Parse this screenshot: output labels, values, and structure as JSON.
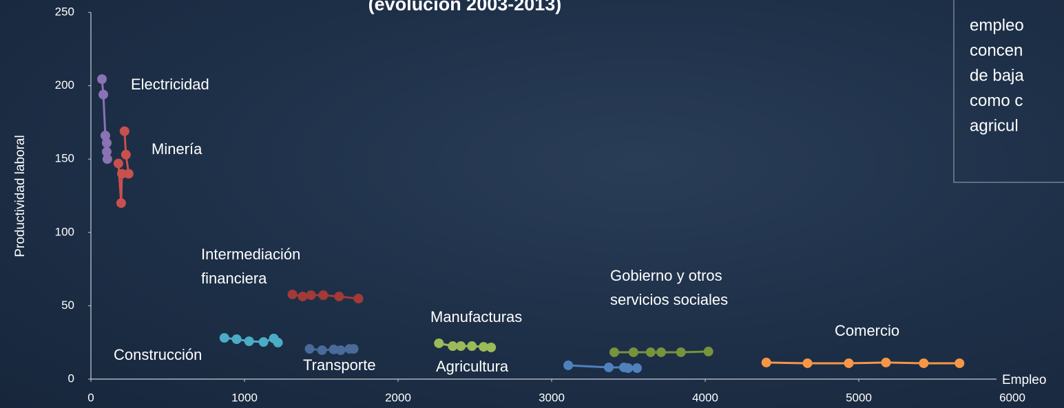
{
  "chart_data": {
    "type": "line",
    "title": "(evolución 2003-2013)",
    "annotation": [
      "empleo",
      "concen",
      "de baja",
      "como c",
      "agricul"
    ],
    "x_label": "Empleo",
    "y_label": "Productividad laboral",
    "xlim": [
      0,
      6000
    ],
    "xticks": [
      0,
      1000,
      2000,
      3000,
      4000,
      5000,
      6000
    ],
    "ylim": [
      0,
      250
    ],
    "yticks": [
      0,
      50,
      100,
      150,
      200,
      250
    ],
    "grid": false,
    "series": [
      {
        "name": "Electricidad",
        "color": "#8a72b4",
        "x": [
          72,
          81,
          94,
          103,
          103,
          107
        ],
        "values": [
          204.5,
          194,
          166,
          161,
          155,
          150
        ]
      },
      {
        "name": "Minería",
        "color": "#c9504d",
        "x": [
          179,
          197,
          202,
          246,
          228,
          219
        ],
        "values": [
          147,
          120,
          140,
          140,
          153,
          169
        ]
      },
      {
        "name": "Intermediación financiera",
        "color": "#a33a37",
        "x": [
          1312,
          1379,
          1433,
          1513,
          1616,
          1742
        ],
        "values": [
          57.7,
          56.3,
          57.2,
          57.2,
          56.3,
          54.9
        ]
      },
      {
        "name": "Construcción",
        "color": "#4bacc6",
        "x": [
          869,
          949,
          1030,
          1124,
          1191,
          1218
        ],
        "values": [
          28.1,
          27.2,
          25.8,
          25.3,
          27.7,
          24.9
        ]
      },
      {
        "name": "Transporte",
        "color": "#4a6a9a",
        "x": [
          1424,
          1505,
          1581,
          1626,
          1684,
          1711
        ],
        "values": [
          20.6,
          19.7,
          20.2,
          19.7,
          20.6,
          20.6
        ]
      },
      {
        "name": "Manufacturas",
        "color": "#9bbb59",
        "x": [
          2266,
          2356,
          2409,
          2481,
          2557,
          2606
        ],
        "values": [
          24.4,
          22.5,
          22.5,
          22.5,
          22.0,
          21.6
        ]
      },
      {
        "name": "Agricultura",
        "color": "#4f81bd",
        "x": [
          3108,
          3372,
          3471,
          3498,
          3556
        ],
        "values": [
          9.4,
          8.0,
          8.0,
          7.5,
          7.5
        ]
      },
      {
        "name": "Gobierno y otros servicios sociales",
        "color": "#77933c",
        "x": [
          3408,
          3533,
          3645,
          3713,
          3842,
          4021
        ],
        "values": [
          18.3,
          18.3,
          18.3,
          18.3,
          18.3,
          18.8
        ]
      },
      {
        "name": "Comercio",
        "color": "#f79646",
        "x": [
          4398,
          4666,
          4935,
          5177,
          5423,
          5656
        ],
        "values": [
          11.3,
          10.8,
          10.8,
          11.3,
          10.8,
          10.8
        ]
      }
    ]
  }
}
